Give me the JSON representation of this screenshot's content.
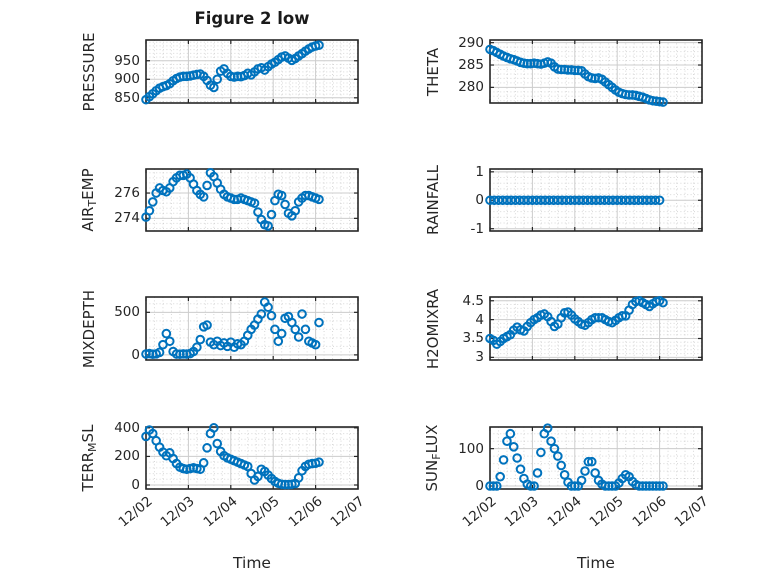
{
  "figure": {
    "title": "Figure 2 low",
    "x_axis_title": "Time",
    "xtick_labels": [
      "12/02",
      "12/03",
      "12/04",
      "12/05",
      "12/06",
      "12/07"
    ],
    "colors": {
      "marker": "#0072BD",
      "axis": "#262626",
      "text": "#262626",
      "grid_major": "#cccccc",
      "grid_minor": "#999999",
      "background": "#ffffff"
    }
  },
  "chart_data": [
    {
      "id": "pressure",
      "type": "scatter",
      "row": 0,
      "col": 0,
      "label": "PRESSURE",
      "ylabel_parts": [
        {
          "text": "PRESSURE"
        }
      ],
      "yticks": [
        850,
        900,
        950
      ],
      "ylim": [
        836,
        1006
      ],
      "xticks": [
        0,
        1,
        2,
        3,
        4,
        5
      ],
      "xlim": [
        0,
        5
      ],
      "x_unit": "days since 12/02",
      "x_start": 0,
      "x_step": 0.08,
      "y": [
        845,
        853,
        861,
        869,
        876,
        880,
        883,
        888,
        896,
        902,
        906,
        908,
        908,
        909,
        911,
        913,
        914,
        908,
        897,
        884,
        878,
        900,
        922,
        928,
        916,
        908,
        906,
        908,
        907,
        910,
        916,
        912,
        920,
        928,
        931,
        925,
        934,
        941,
        946,
        953,
        960,
        963,
        957,
        951,
        956,
        963,
        969,
        976,
        982,
        987,
        990,
        992
      ]
    },
    {
      "id": "theta",
      "type": "scatter",
      "row": 0,
      "col": 1,
      "label": "THETA",
      "ylabel_parts": [
        {
          "text": "THETA"
        }
      ],
      "yticks": [
        280,
        285,
        290
      ],
      "ylim": [
        276.5,
        290.6
      ],
      "xticks": [
        0,
        1,
        2,
        3,
        4,
        5
      ],
      "xlim": [
        0,
        5
      ],
      "x_unit": "days since 12/02",
      "x_start": 0,
      "x_step": 0.08,
      "y": [
        288.5,
        288.2,
        287.8,
        287.4,
        287.0,
        286.7,
        286.4,
        286.2,
        285.9,
        285.6,
        285.4,
        285.3,
        285.3,
        285.4,
        285.3,
        285.2,
        285.4,
        285.7,
        285.4,
        284.6,
        284.1,
        284.0,
        284.0,
        283.9,
        283.9,
        283.8,
        283.8,
        283.7,
        283.0,
        282.4,
        282.1,
        282.0,
        282.1,
        281.8,
        281.2,
        280.6,
        280.0,
        279.4,
        278.9,
        278.6,
        278.4,
        278.3,
        278.3,
        278.2,
        278.0,
        277.8,
        277.5,
        277.2,
        277.0,
        276.9,
        276.8,
        276.7
      ]
    },
    {
      "id": "air_temp",
      "type": "scatter",
      "row": 1,
      "col": 0,
      "label": "AIR_TEMP",
      "ylabel_parts": [
        {
          "text": "AIR"
        },
        {
          "text": "T",
          "sub": true
        },
        {
          "text": "EMP"
        }
      ],
      "yticks": [
        274,
        276
      ],
      "ylim": [
        273.0,
        277.9
      ],
      "xticks": [
        0,
        1,
        2,
        3,
        4,
        5
      ],
      "xlim": [
        0,
        5
      ],
      "x_unit": "days since 12/02",
      "x_start": 0,
      "x_step": 0.08,
      "y": [
        274.1,
        274.6,
        275.3,
        276.0,
        276.4,
        276.2,
        276.1,
        276.4,
        276.9,
        277.2,
        277.4,
        277.4,
        277.5,
        277.2,
        276.7,
        276.2,
        275.9,
        275.7,
        276.6,
        277.6,
        277.3,
        276.8,
        276.3,
        275.9,
        275.7,
        275.6,
        275.5,
        275.5,
        275.6,
        275.5,
        275.4,
        275.3,
        275.2,
        274.5,
        273.9,
        273.5,
        273.4,
        274.3,
        275.4,
        275.9,
        275.8,
        275.1,
        274.4,
        274.2,
        274.6,
        275.3,
        275.6,
        275.8,
        275.8,
        275.7,
        275.6,
        275.5
      ]
    },
    {
      "id": "rainfall",
      "type": "scatter",
      "row": 1,
      "col": 1,
      "label": "RAINFALL",
      "ylabel_parts": [
        {
          "text": "RAINFALL"
        }
      ],
      "yticks": [
        -1,
        0,
        1
      ],
      "ylim": [
        -1.08,
        1.1
      ],
      "xticks": [
        0,
        1,
        2,
        3,
        4,
        5
      ],
      "xlim": [
        0,
        5
      ],
      "x_unit": "days since 12/02",
      "x_start": 0,
      "x_step": 0.1,
      "y": [
        0,
        0,
        0,
        0,
        0,
        0,
        0,
        0,
        0,
        0,
        0,
        0,
        0,
        0,
        0,
        0,
        0,
        0,
        0,
        0,
        0,
        0,
        0,
        0,
        0,
        0,
        0,
        0,
        0,
        0,
        0,
        0,
        0,
        0,
        0,
        0,
        0,
        0,
        0,
        0,
        0
      ]
    },
    {
      "id": "mixdepth",
      "type": "scatter",
      "row": 2,
      "col": 0,
      "label": "MIXDEPTH",
      "ylabel_parts": [
        {
          "text": "MIXDEPTH"
        }
      ],
      "yticks": [
        0,
        500
      ],
      "ylim": [
        -60,
        680
      ],
      "xticks": [
        0,
        1,
        2,
        3,
        4,
        5
      ],
      "xlim": [
        0,
        5
      ],
      "x_unit": "days since 12/02",
      "x_start": 0,
      "x_step": 0.08,
      "y": [
        10,
        15,
        8,
        12,
        30,
        120,
        250,
        160,
        40,
        10,
        8,
        12,
        10,
        15,
        40,
        90,
        180,
        330,
        350,
        150,
        120,
        160,
        110,
        140,
        100,
        150,
        90,
        130,
        120,
        160,
        230,
        300,
        350,
        420,
        480,
        620,
        560,
        460,
        300,
        160,
        250,
        430,
        450,
        380,
        300,
        210,
        480,
        300,
        160,
        140,
        120,
        380
      ]
    },
    {
      "id": "h2omixra",
      "type": "scatter",
      "row": 2,
      "col": 1,
      "label": "H2OMIXRA",
      "ylabel_parts": [
        {
          "text": "H2OMIXRA"
        }
      ],
      "yticks": [
        3,
        3.5,
        4,
        4.5
      ],
      "ylim": [
        2.93,
        4.6
      ],
      "xticks": [
        0,
        1,
        2,
        3,
        4,
        5
      ],
      "xlim": [
        0,
        5
      ],
      "x_unit": "days since 12/02",
      "x_start": 0,
      "x_step": 0.08,
      "y": [
        3.5,
        3.45,
        3.35,
        3.42,
        3.5,
        3.55,
        3.6,
        3.72,
        3.8,
        3.73,
        3.7,
        3.82,
        3.92,
        4.0,
        4.05,
        4.12,
        4.15,
        4.08,
        3.95,
        3.82,
        3.88,
        4.05,
        4.18,
        4.2,
        4.12,
        4.02,
        3.95,
        3.88,
        3.85,
        3.92,
        4.0,
        4.05,
        4.05,
        4.05,
        4.0,
        3.95,
        3.92,
        3.98,
        4.05,
        4.1,
        4.1,
        4.25,
        4.4,
        4.48,
        4.5,
        4.45,
        4.4,
        4.35,
        4.42,
        4.48,
        4.5,
        4.45
      ]
    },
    {
      "id": "terr_msl",
      "type": "scatter",
      "row": 3,
      "col": 0,
      "label": "TERR_MSL",
      "ylabel_parts": [
        {
          "text": "TERR"
        },
        {
          "text": "M",
          "sub": true
        },
        {
          "text": "SL"
        }
      ],
      "yticks": [
        0,
        200,
        400
      ],
      "ylim": [
        -28,
        406
      ],
      "xticks": [
        0,
        1,
        2,
        3,
        4,
        5
      ],
      "xlim": [
        0,
        5
      ],
      "x_unit": "days since 12/02",
      "x_start": 0,
      "x_step": 0.08,
      "y": [
        340,
        385,
        360,
        310,
        265,
        230,
        205,
        225,
        185,
        150,
        125,
        115,
        110,
        115,
        120,
        115,
        110,
        155,
        260,
        360,
        400,
        290,
        235,
        205,
        190,
        180,
        170,
        160,
        150,
        140,
        130,
        80,
        35,
        60,
        110,
        95,
        70,
        45,
        25,
        12,
        5,
        3,
        3,
        5,
        10,
        50,
        100,
        130,
        145,
        150,
        152,
        160
      ]
    },
    {
      "id": "sun_flux",
      "type": "scatter",
      "row": 3,
      "col": 1,
      "label": "SUN_FLUX",
      "ylabel_parts": [
        {
          "text": "SUN"
        },
        {
          "text": "F",
          "sub": true
        },
        {
          "text": "LUX"
        }
      ],
      "yticks": [
        0,
        100
      ],
      "ylim": [
        -8,
        158
      ],
      "xticks": [
        0,
        1,
        2,
        3,
        4,
        5
      ],
      "xlim": [
        0,
        5
      ],
      "x_unit": "days since 12/02",
      "x_start": 0,
      "x_step": 0.08,
      "y": [
        0,
        0,
        0,
        25,
        70,
        120,
        140,
        105,
        75,
        45,
        20,
        5,
        0,
        0,
        35,
        90,
        140,
        155,
        120,
        100,
        80,
        55,
        30,
        10,
        0,
        0,
        0,
        15,
        40,
        65,
        65,
        35,
        15,
        5,
        0,
        0,
        0,
        0,
        8,
        20,
        30,
        25,
        12,
        4,
        0,
        0,
        0,
        0,
        0,
        0,
        0,
        0
      ]
    }
  ]
}
